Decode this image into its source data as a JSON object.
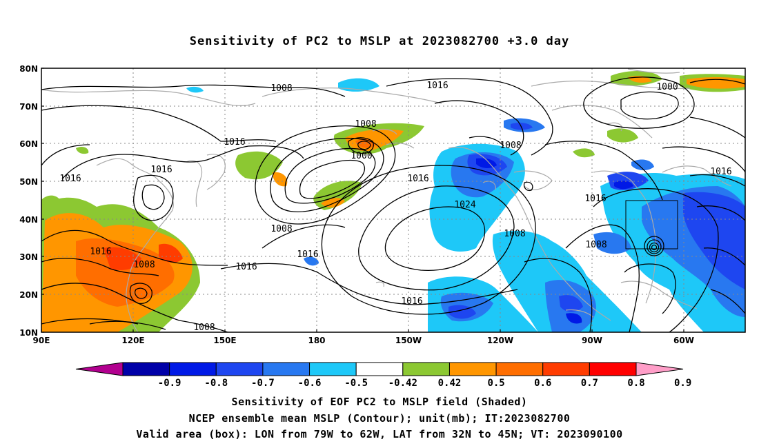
{
  "title": "Sensitivity of PC2 to MSLP at 2023082700 +3.0 day",
  "map": {
    "lat_labels": [
      "80N",
      "70N",
      "60N",
      "50N",
      "40N",
      "30N",
      "20N",
      "10N"
    ],
    "lon_labels": [
      "90E",
      "120E",
      "150E",
      "180",
      "150W",
      "120W",
      "90W",
      "60W"
    ],
    "contour_labels": [
      {
        "text": "1008",
        "key": "a"
      },
      {
        "text": "1016",
        "key": "b"
      },
      {
        "text": "1008",
        "key": "c"
      },
      {
        "text": "1000",
        "key": "d"
      },
      {
        "text": "1016",
        "key": "e"
      },
      {
        "text": "1016",
        "key": "f"
      },
      {
        "text": "1008",
        "key": "g"
      },
      {
        "text": "1000",
        "key": "h"
      },
      {
        "text": "1016",
        "key": "i"
      },
      {
        "text": "1016",
        "key": "j"
      },
      {
        "text": "1016",
        "key": "k"
      },
      {
        "text": "1024",
        "key": "l"
      },
      {
        "text": "1008",
        "key": "m"
      },
      {
        "text": "1008",
        "key": "n"
      },
      {
        "text": "1016",
        "key": "o"
      },
      {
        "text": "1016",
        "key": "p"
      },
      {
        "text": "1016",
        "key": "q"
      },
      {
        "text": "1008",
        "key": "r"
      },
      {
        "text": "1016",
        "key": "s"
      },
      {
        "text": "1008",
        "key": "t"
      },
      {
        "text": "1008",
        "key": "u"
      },
      {
        "text": "1016",
        "key": "v"
      }
    ],
    "verification_box": {
      "lon_range": "79W to 62W",
      "lat_range": "32N to 45N"
    }
  },
  "colorbar": {
    "labels": [
      "-0.9",
      "-0.8",
      "-0.7",
      "-0.6",
      "-0.5",
      "-0.42",
      "0.42",
      "0.5",
      "0.6",
      "0.7",
      "0.8",
      "0.9"
    ],
    "colors": [
      "#b2008f",
      "#0000a8",
      "#0019e6",
      "#1e46f0",
      "#2878f0",
      "#1ec8f8",
      "#ffffff",
      "#8cc832",
      "#ff9600",
      "#ff6e00",
      "#ff3c00",
      "#ff0000",
      "#ff9ec8"
    ]
  },
  "captions": [
    "Sensitivity of EOF PC2 to MSLP field (Shaded)",
    "NCEP ensemble mean MSLP (Contour); unit(mb); IT:2023082700",
    "Valid area (box): LON from 79W to 62W, LAT from 32N to 45N; VT: 2023090100"
  ]
}
